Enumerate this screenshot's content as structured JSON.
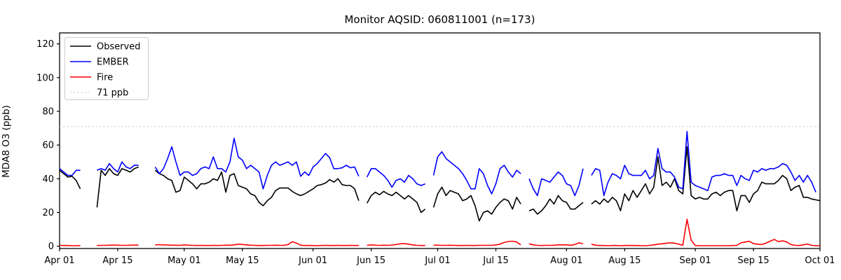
{
  "title": "Monitor AQSID: 060811001 (n=173)",
  "axes": {
    "ylabel": "MDA8 O3 (ppb)",
    "yticks": [
      0,
      20,
      40,
      60,
      80,
      100,
      120
    ],
    "ylim": [
      -1.4,
      126.5
    ],
    "xtick_labels": [
      "Apr 01",
      "Apr 15",
      "May 01",
      "May 15",
      "Jun 01",
      "Jun 15",
      "Jul 01",
      "Jul 15",
      "Aug 01",
      "Aug 15",
      "Sep 01",
      "Sep 15",
      "Oct 01"
    ],
    "xtick_days": [
      0,
      14,
      30,
      44,
      61,
      75,
      91,
      105,
      122,
      136,
      153,
      167,
      183
    ]
  },
  "legend": [
    {
      "label": "Observed",
      "color": "#000000",
      "style": "solid"
    },
    {
      "label": "EMBER",
      "color": "#0000ff",
      "style": "solid"
    },
    {
      "label": "Fire",
      "color": "#ff0000",
      "style": "solid"
    },
    {
      "label": "71 ppb",
      "color": "#d3d3d3",
      "style": "dotted"
    }
  ],
  "chart_data": {
    "type": "line",
    "title": "Monitor AQSID: 060811001 (n=173)",
    "xlabel": "",
    "ylabel": "MDA8 O3 (ppb)",
    "x_days": 184,
    "x_start": "Apr 01",
    "x_end": "Oct 01",
    "grid": false,
    "legend_position": "upper left",
    "threshold": {
      "value": 71,
      "label": "71 ppb",
      "color": "#d3d3d3",
      "style": "dotted"
    },
    "series": [
      {
        "name": "Observed",
        "color": "#000000",
        "style": "solid",
        "values": [
          45,
          43,
          41,
          41.5,
          39,
          34,
          null,
          null,
          null,
          23,
          45,
          42,
          46,
          43,
          42,
          46,
          45,
          44,
          46,
          47,
          null,
          null,
          null,
          45,
          43,
          42,
          40,
          39,
          32,
          33,
          41,
          39,
          37,
          34,
          37,
          37,
          38,
          40,
          39,
          44,
          32,
          42,
          43,
          36,
          35,
          34,
          31,
          30,
          26,
          24,
          27,
          29,
          33,
          34.5,
          34.5,
          34.5,
          32.5,
          31,
          30,
          31,
          32.5,
          34,
          36,
          36.5,
          37.5,
          39.5,
          38,
          40,
          36.5,
          36,
          36,
          34,
          27,
          null,
          25.5,
          30,
          32,
          30.5,
          32.5,
          31,
          30,
          32,
          30,
          28,
          30,
          28,
          26,
          20,
          22,
          null,
          23,
          31,
          35,
          30,
          33,
          32,
          31,
          27,
          28,
          30,
          24,
          15,
          20,
          21,
          19,
          23,
          26,
          28,
          27,
          22,
          29,
          25,
          null,
          21,
          22,
          19,
          21,
          24,
          28,
          25,
          30,
          27,
          26,
          22,
          22,
          24,
          26,
          null,
          25,
          27,
          25,
          28,
          26,
          29,
          27,
          21,
          31,
          27,
          33,
          29,
          33,
          37,
          31,
          35,
          53,
          36,
          38,
          35,
          40,
          33,
          31,
          59,
          30,
          28,
          29,
          28,
          28,
          31,
          32,
          30,
          32,
          33,
          33,
          21,
          30,
          30,
          26,
          31,
          33,
          38,
          37,
          37,
          37,
          39,
          42,
          40,
          33,
          35,
          36,
          29,
          29,
          28,
          27.5,
          27
        ]
      },
      {
        "name": "EMBER",
        "color": "#0000ff",
        "style": "solid",
        "values": [
          46,
          44,
          42,
          42,
          45,
          45,
          null,
          null,
          null,
          45,
          46,
          45,
          49,
          46,
          44,
          50,
          47,
          46,
          48,
          48,
          null,
          null,
          null,
          47,
          43,
          46,
          52,
          59,
          50,
          42,
          44,
          44,
          42,
          43,
          46,
          47,
          46,
          53,
          46,
          46,
          44,
          50,
          64,
          53,
          51,
          46,
          48,
          46,
          44,
          34,
          42,
          48,
          50,
          48,
          49,
          50,
          48,
          50,
          41.5,
          44,
          42,
          47,
          49,
          52,
          55,
          52.5,
          46,
          46,
          46.5,
          48,
          46.5,
          47,
          41.5,
          null,
          41,
          46,
          46,
          44,
          42,
          39,
          35,
          39,
          40,
          38,
          42,
          40,
          37,
          36,
          37,
          null,
          42,
          53,
          56,
          52,
          50,
          48,
          46,
          43,
          39,
          34,
          34,
          46,
          43,
          36,
          31,
          37,
          46,
          48,
          44,
          41,
          45,
          43,
          null,
          40,
          34,
          30,
          40,
          39,
          38,
          41,
          44,
          42,
          37,
          36,
          30,
          36,
          46,
          null,
          42,
          46,
          45,
          30,
          38,
          43,
          42,
          40,
          48,
          43,
          42,
          42,
          42,
          45,
          40,
          42,
          58,
          46,
          44,
          44,
          41,
          35,
          34,
          68,
          38,
          36,
          35,
          34,
          33,
          41,
          42,
          42,
          43,
          42,
          42,
          36,
          42,
          40,
          39,
          45,
          44,
          46,
          45,
          46,
          46,
          47,
          49,
          48,
          44,
          39,
          42,
          38,
          42,
          38,
          32,
          null
        ]
      },
      {
        "name": "Fire",
        "color": "#ff0000",
        "style": "solid",
        "values": [
          0.5,
          0.4,
          0.4,
          0.3,
          0.3,
          0.4,
          null,
          null,
          null,
          0.4,
          0.5,
          0.5,
          0.6,
          0.7,
          0.6,
          0.5,
          0.5,
          0.6,
          0.7,
          0.6,
          null,
          null,
          null,
          0.8,
          0.9,
          0.8,
          0.7,
          0.6,
          0.6,
          0.5,
          0.8,
          0.6,
          0.5,
          0.4,
          0.5,
          0.4,
          0.4,
          0.5,
          0.4,
          0.5,
          0.6,
          0.6,
          0.8,
          1.2,
          1,
          0.8,
          0.6,
          0.5,
          0.4,
          0.4,
          0.5,
          0.5,
          0.6,
          0.5,
          0.5,
          1,
          2.6,
          1.8,
          0.6,
          0.4,
          0.4,
          0.4,
          0.3,
          0.4,
          0.5,
          0.4,
          0.4,
          0.5,
          0.4,
          0.4,
          0.5,
          0.4,
          0.4,
          null,
          0.5,
          0.8,
          0.6,
          0.5,
          0.6,
          0.5,
          0.7,
          1,
          1.5,
          1.5,
          1.2,
          0.8,
          0.5,
          0.4,
          0.4,
          null,
          0.6,
          0.6,
          0.5,
          0.5,
          0.6,
          0.5,
          0.4,
          0.4,
          0.5,
          0.4,
          0.4,
          0.5,
          0.5,
          0.5,
          0.5,
          0.8,
          1.2,
          2.2,
          2.8,
          3,
          2.5,
          0.8,
          null,
          1.4,
          0.8,
          0.5,
          0.4,
          0.5,
          0.5,
          0.6,
          0.8,
          0.8,
          0.8,
          0.6,
          1,
          2,
          1.5,
          null,
          1.2,
          0.6,
          0.4,
          0.4,
          0.3,
          0.4,
          0.4,
          0.3,
          0.4,
          0.4,
          0.4,
          0.4,
          0.3,
          0.3,
          0.5,
          0.8,
          1.2,
          1.4,
          1.8,
          2,
          1.8,
          1.2,
          0.6,
          16,
          3.5,
          0.4,
          0.3,
          0.3,
          0.3,
          0.3,
          0.3,
          0.3,
          0.3,
          0.3,
          0.4,
          0.5,
          2,
          2.5,
          2.9,
          1.5,
          1.2,
          1,
          1.8,
          3,
          4,
          2.7,
          3.2,
          2.5,
          1,
          0.5,
          0.4,
          0.8,
          1.3,
          0.5,
          0.3,
          0.3
        ]
      }
    ]
  }
}
